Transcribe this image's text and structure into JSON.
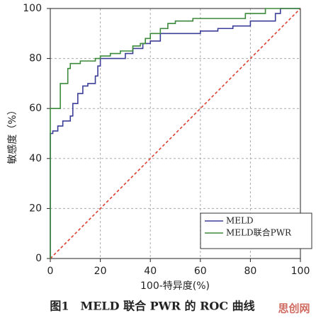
{
  "chart_data": {
    "type": "line",
    "title": "图1　MELD 联合 PWR 的 ROC 曲线",
    "x_label": "100-特异度(%)",
    "y_label": "敏感度（%）",
    "watermark": "思创网",
    "xlim": [
      0,
      100
    ],
    "ylim": [
      0,
      100
    ],
    "xticks": [
      0,
      20,
      40,
      60,
      80,
      100
    ],
    "yticks": [
      0,
      20,
      40,
      60,
      80,
      100
    ],
    "grid": true,
    "legend": "lower right",
    "reference_line": {
      "x": [
        0,
        100
      ],
      "y": [
        0,
        100
      ],
      "color": "#d9412e"
    },
    "series": [
      {
        "name": "MELD",
        "color": "#3c3f98",
        "x": [
          0,
          0,
          1,
          1,
          3,
          3,
          5,
          5,
          8,
          8,
          9,
          9,
          11,
          11,
          13,
          13,
          15,
          15,
          18,
          18,
          19,
          19,
          20,
          20,
          30,
          30,
          33,
          33,
          37,
          37,
          40,
          40,
          44,
          44,
          60,
          60,
          67,
          67,
          73,
          73,
          80,
          80,
          90,
          90,
          92,
          92,
          100
        ],
        "y": [
          0,
          50,
          50,
          51,
          51,
          53,
          53,
          55,
          55,
          57,
          57,
          62,
          62,
          66,
          66,
          69,
          69,
          70,
          70,
          73,
          73,
          77,
          77,
          80,
          80,
          82,
          82,
          84,
          84,
          86,
          86,
          87,
          87,
          90,
          90,
          91,
          91,
          92,
          92,
          93,
          93,
          95,
          95,
          98,
          98,
          100,
          100
        ]
      },
      {
        "name": "MELD联合PWR",
        "color": "#3b8a3b",
        "x": [
          0,
          0,
          4,
          4,
          7,
          7,
          8,
          8,
          12,
          12,
          18,
          18,
          20,
          20,
          24,
          24,
          28,
          28,
          33,
          33,
          36,
          36,
          38,
          38,
          40,
          40,
          44,
          44,
          47,
          47,
          50,
          50,
          57,
          57,
          78,
          78,
          86,
          86,
          100
        ],
        "y": [
          0,
          60,
          60,
          70,
          70,
          76,
          76,
          78,
          78,
          79,
          79,
          80,
          80,
          81,
          81,
          82,
          82,
          83,
          83,
          85,
          85,
          86,
          86,
          88,
          88,
          90,
          90,
          92,
          92,
          94,
          94,
          95,
          95,
          96,
          96,
          98,
          98,
          100,
          100
        ]
      }
    ]
  }
}
